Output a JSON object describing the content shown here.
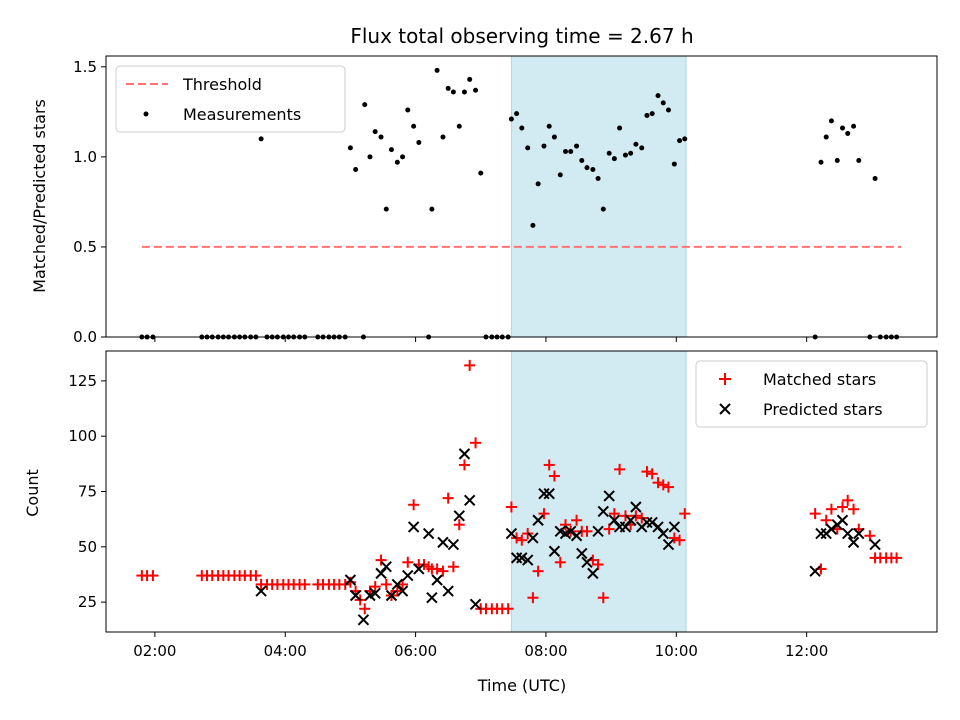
{
  "chart_data": {
    "type": "scatter",
    "title": "Flux total observing time = 2.67 h",
    "xlabel": "Time (UTC)",
    "xlim": [
      1.25,
      14.0
    ],
    "x_ticks": [
      2,
      4,
      6,
      8,
      10,
      12
    ],
    "x_tick_labels": [
      "02:00",
      "04:00",
      "06:00",
      "08:00",
      "10:00",
      "12:00"
    ],
    "shaded_span": [
      7.47,
      10.15
    ],
    "span_color": "#add8e6",
    "top": {
      "ylabel": "Matched/Predicted stars",
      "ylim": [
        0,
        1.56
      ],
      "y_ticks": [
        0,
        0.5,
        1.0,
        1.5
      ],
      "y_tick_labels": [
        "0.0",
        "0.5",
        "1.0",
        "1.5"
      ],
      "threshold": {
        "name": "Threshold",
        "y": 0.5,
        "x_range": [
          1.8,
          13.45
        ],
        "color": "#ff7373"
      },
      "measurements": {
        "name": "Measurements",
        "color": "#000000",
        "points": [
          [
            1.8,
            0
          ],
          [
            1.88,
            0
          ],
          [
            1.97,
            0
          ],
          [
            2.72,
            0
          ],
          [
            2.8,
            0
          ],
          [
            2.88,
            0
          ],
          [
            2.97,
            0
          ],
          [
            3.05,
            0
          ],
          [
            3.13,
            0
          ],
          [
            3.22,
            0
          ],
          [
            3.3,
            0
          ],
          [
            3.38,
            0
          ],
          [
            3.47,
            0
          ],
          [
            3.55,
            0
          ],
          [
            3.63,
            1.1
          ],
          [
            3.72,
            0
          ],
          [
            3.8,
            0
          ],
          [
            3.88,
            0
          ],
          [
            3.97,
            0
          ],
          [
            4.05,
            0
          ],
          [
            4.13,
            0
          ],
          [
            4.22,
            0
          ],
          [
            4.3,
            0
          ],
          [
            4.5,
            0
          ],
          [
            4.58,
            0
          ],
          [
            4.67,
            0
          ],
          [
            4.75,
            0
          ],
          [
            4.83,
            0
          ],
          [
            4.92,
            0
          ],
          [
            5.0,
            1.05
          ],
          [
            5.08,
            0.93
          ],
          [
            5.2,
            0
          ],
          [
            5.22,
            1.29
          ],
          [
            5.3,
            1.0
          ],
          [
            5.38,
            1.14
          ],
          [
            5.47,
            1.11
          ],
          [
            5.55,
            0.71
          ],
          [
            5.63,
            1.04
          ],
          [
            5.72,
            0.97
          ],
          [
            5.8,
            1.0
          ],
          [
            5.88,
            1.26
          ],
          [
            5.97,
            1.17
          ],
          [
            6.05,
            1.08
          ],
          [
            6.2,
            0
          ],
          [
            6.25,
            0.71
          ],
          [
            6.33,
            1.48
          ],
          [
            6.42,
            1.11
          ],
          [
            6.5,
            1.38
          ],
          [
            6.58,
            1.36
          ],
          [
            6.67,
            1.17
          ],
          [
            6.75,
            1.36
          ],
          [
            6.83,
            1.43
          ],
          [
            6.92,
            1.37
          ],
          [
            7.0,
            0.91
          ],
          [
            7.08,
            0
          ],
          [
            7.17,
            0
          ],
          [
            7.25,
            0
          ],
          [
            7.33,
            0
          ],
          [
            7.42,
            0
          ],
          [
            7.47,
            1.21
          ],
          [
            7.55,
            1.24
          ],
          [
            7.63,
            1.16
          ],
          [
            7.72,
            1.05
          ],
          [
            7.8,
            0.62
          ],
          [
            7.88,
            0.85
          ],
          [
            7.97,
            1.06
          ],
          [
            8.05,
            1.17
          ],
          [
            8.13,
            1.11
          ],
          [
            8.22,
            0.9
          ],
          [
            8.3,
            1.03
          ],
          [
            8.38,
            1.03
          ],
          [
            8.47,
            1.06
          ],
          [
            8.55,
            0.98
          ],
          [
            8.63,
            0.94
          ],
          [
            8.72,
            0.93
          ],
          [
            8.8,
            0.88
          ],
          [
            8.88,
            0.71
          ],
          [
            8.97,
            1.02
          ],
          [
            9.05,
            0.99
          ],
          [
            9.13,
            1.16
          ],
          [
            9.22,
            1.01
          ],
          [
            9.3,
            1.02
          ],
          [
            9.38,
            1.07
          ],
          [
            9.47,
            1.05
          ],
          [
            9.55,
            1.23
          ],
          [
            9.63,
            1.24
          ],
          [
            9.72,
            1.34
          ],
          [
            9.8,
            1.3
          ],
          [
            9.88,
            1.26
          ],
          [
            9.97,
            0.96
          ],
          [
            10.05,
            1.09
          ],
          [
            10.13,
            1.1
          ],
          [
            12.13,
            0
          ],
          [
            12.22,
            0.97
          ],
          [
            12.3,
            1.11
          ],
          [
            12.38,
            1.2
          ],
          [
            12.47,
            0.98
          ],
          [
            12.55,
            1.16
          ],
          [
            12.63,
            1.13
          ],
          [
            12.72,
            1.17
          ],
          [
            12.8,
            0.98
          ],
          [
            12.97,
            0
          ],
          [
            13.05,
            0.88
          ],
          [
            13.13,
            0
          ],
          [
            13.22,
            0
          ],
          [
            13.3,
            0
          ],
          [
            13.38,
            0
          ]
        ]
      }
    },
    "bottom": {
      "ylabel": "Count",
      "ylim": [
        11.5,
        138.5
      ],
      "y_ticks": [
        25,
        50,
        75,
        100,
        125
      ],
      "y_tick_labels": [
        "25",
        "50",
        "75",
        "100",
        "125"
      ],
      "series": [
        {
          "name": "Matched stars",
          "marker": "plus",
          "color": "#ff0000",
          "points": [
            [
              1.8,
              37
            ],
            [
              1.88,
              37
            ],
            [
              1.97,
              37
            ],
            [
              2.72,
              37
            ],
            [
              2.8,
              37
            ],
            [
              2.88,
              37
            ],
            [
              2.97,
              37
            ],
            [
              3.05,
              37
            ],
            [
              3.13,
              37
            ],
            [
              3.22,
              37
            ],
            [
              3.3,
              37
            ],
            [
              3.38,
              37
            ],
            [
              3.47,
              37
            ],
            [
              3.55,
              37
            ],
            [
              3.63,
              33
            ],
            [
              3.72,
              33
            ],
            [
              3.8,
              33
            ],
            [
              3.88,
              33
            ],
            [
              3.97,
              33
            ],
            [
              4.05,
              33
            ],
            [
              4.13,
              33
            ],
            [
              4.22,
              33
            ],
            [
              4.3,
              33
            ],
            [
              4.5,
              33
            ],
            [
              4.58,
              33
            ],
            [
              4.67,
              33
            ],
            [
              4.75,
              33
            ],
            [
              4.83,
              33
            ],
            [
              4.92,
              33
            ],
            [
              5.0,
              34
            ],
            [
              5.08,
              30
            ],
            [
              5.15,
              26
            ],
            [
              5.22,
              22
            ],
            [
              5.3,
              30
            ],
            [
              5.38,
              32
            ],
            [
              5.47,
              44
            ],
            [
              5.55,
              33
            ],
            [
              5.63,
              28
            ],
            [
              5.72,
              30
            ],
            [
              5.8,
              33
            ],
            [
              5.88,
              43
            ],
            [
              5.97,
              69
            ],
            [
              6.05,
              42
            ],
            [
              6.13,
              42
            ],
            [
              6.2,
              41
            ],
            [
              6.25,
              40
            ],
            [
              6.33,
              40
            ],
            [
              6.42,
              39
            ],
            [
              6.5,
              72
            ],
            [
              6.58,
              41
            ],
            [
              6.67,
              60
            ],
            [
              6.75,
              87
            ],
            [
              6.83,
              132
            ],
            [
              6.92,
              97
            ],
            [
              7.0,
              22
            ],
            [
              7.08,
              22
            ],
            [
              7.17,
              22
            ],
            [
              7.25,
              22
            ],
            [
              7.33,
              22
            ],
            [
              7.42,
              22
            ],
            [
              7.47,
              68
            ],
            [
              7.55,
              54
            ],
            [
              7.63,
              53
            ],
            [
              7.72,
              56
            ],
            [
              7.8,
              27
            ],
            [
              7.88,
              39
            ],
            [
              7.97,
              65
            ],
            [
              8.05,
              87
            ],
            [
              8.13,
              82
            ],
            [
              8.22,
              43
            ],
            [
              8.3,
              60
            ],
            [
              8.38,
              57
            ],
            [
              8.47,
              62
            ],
            [
              8.55,
              57
            ],
            [
              8.63,
              57
            ],
            [
              8.72,
              44
            ],
            [
              8.8,
              42
            ],
            [
              8.88,
              27
            ],
            [
              8.97,
              58
            ],
            [
              9.05,
              65
            ],
            [
              9.13,
              85
            ],
            [
              9.22,
              64
            ],
            [
              9.3,
              60
            ],
            [
              9.38,
              64
            ],
            [
              9.47,
              63
            ],
            [
              9.55,
              84
            ],
            [
              9.63,
              83
            ],
            [
              9.72,
              79
            ],
            [
              9.8,
              78
            ],
            [
              9.88,
              77
            ],
            [
              9.97,
              54
            ],
            [
              10.05,
              53
            ],
            [
              10.13,
              65
            ],
            [
              12.13,
              65
            ],
            [
              12.22,
              40
            ],
            [
              12.3,
              62
            ],
            [
              12.38,
              67
            ],
            [
              12.47,
              58
            ],
            [
              12.55,
              68
            ],
            [
              12.63,
              71
            ],
            [
              12.72,
              67
            ],
            [
              12.8,
              58
            ],
            [
              12.97,
              55
            ],
            [
              13.05,
              45
            ],
            [
              13.13,
              45
            ],
            [
              13.22,
              45
            ],
            [
              13.3,
              45
            ],
            [
              13.38,
              45
            ]
          ]
        },
        {
          "name": "Predicted stars",
          "marker": "x",
          "color": "#000000",
          "points": [
            [
              3.63,
              30
            ],
            [
              5.0,
              35
            ],
            [
              5.08,
              28
            ],
            [
              5.2,
              17
            ],
            [
              5.3,
              28
            ],
            [
              5.38,
              29
            ],
            [
              5.47,
              38
            ],
            [
              5.55,
              41
            ],
            [
              5.63,
              28
            ],
            [
              5.72,
              33
            ],
            [
              5.8,
              30
            ],
            [
              5.88,
              37
            ],
            [
              5.97,
              59
            ],
            [
              6.05,
              40
            ],
            [
              6.2,
              56
            ],
            [
              6.25,
              27
            ],
            [
              6.33,
              35
            ],
            [
              6.42,
              52
            ],
            [
              6.5,
              30
            ],
            [
              6.58,
              51
            ],
            [
              6.67,
              64
            ],
            [
              6.75,
              92
            ],
            [
              6.83,
              71
            ],
            [
              6.92,
              24
            ],
            [
              7.47,
              56
            ],
            [
              7.55,
              45
            ],
            [
              7.63,
              45
            ],
            [
              7.72,
              44
            ],
            [
              7.8,
              54
            ],
            [
              7.88,
              62
            ],
            [
              7.97,
              74
            ],
            [
              8.05,
              74
            ],
            [
              8.13,
              48
            ],
            [
              8.22,
              57
            ],
            [
              8.3,
              56
            ],
            [
              8.38,
              57
            ],
            [
              8.47,
              55
            ],
            [
              8.55,
              47
            ],
            [
              8.63,
              43
            ],
            [
              8.72,
              38
            ],
            [
              8.8,
              57
            ],
            [
              8.88,
              66
            ],
            [
              8.97,
              73
            ],
            [
              9.05,
              62
            ],
            [
              9.13,
              59
            ],
            [
              9.22,
              59
            ],
            [
              9.3,
              62
            ],
            [
              9.38,
              68
            ],
            [
              9.47,
              59
            ],
            [
              9.55,
              61
            ],
            [
              9.63,
              61
            ],
            [
              9.72,
              59
            ],
            [
              9.8,
              56
            ],
            [
              9.88,
              51
            ],
            [
              9.97,
              59
            ],
            [
              12.13,
              39
            ],
            [
              12.22,
              56
            ],
            [
              12.3,
              56
            ],
            [
              12.38,
              58
            ],
            [
              12.47,
              60
            ],
            [
              12.55,
              62
            ],
            [
              12.63,
              56
            ],
            [
              12.72,
              52
            ],
            [
              12.8,
              56
            ],
            [
              13.05,
              51
            ]
          ]
        }
      ]
    }
  }
}
